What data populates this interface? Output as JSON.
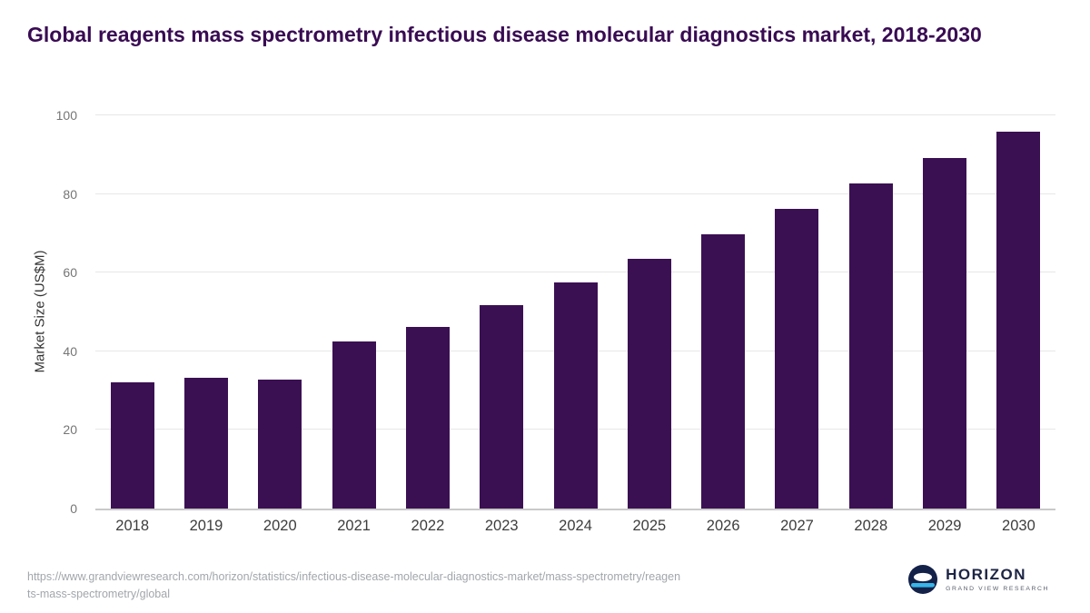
{
  "chart_data": {
    "type": "bar",
    "title": "Global reagents mass spectrometry infectious disease molecular diagnostics market, 2018-2030",
    "xlabel": "",
    "ylabel": "Market Size (US$M)",
    "categories": [
      "2018",
      "2019",
      "2020",
      "2021",
      "2022",
      "2023",
      "2024",
      "2025",
      "2026",
      "2027",
      "2028",
      "2029",
      "2030"
    ],
    "values": [
      32.1,
      33.2,
      32.7,
      42.5,
      46.1,
      51.7,
      57.5,
      63.6,
      69.8,
      76.2,
      82.7,
      89.1,
      95.8
    ],
    "ylim": [
      0,
      100
    ],
    "yticks": [
      0,
      20,
      40,
      60,
      80,
      100
    ],
    "grid": true,
    "legend": false,
    "bar_color": "#3b1053"
  },
  "source": {
    "lines": [
      "https://www.grandviewresearch.com/horizon/statistics/infectious-disease-molecular-diagnostics-market/mass-spectrometry/reagen",
      "ts-mass-spectrometry/global"
    ]
  },
  "logo": {
    "name": "HORIZON",
    "subtitle": "GRAND VIEW RESEARCH",
    "icon_navy": "#14224a",
    "icon_cyan": "#37b6e9"
  }
}
